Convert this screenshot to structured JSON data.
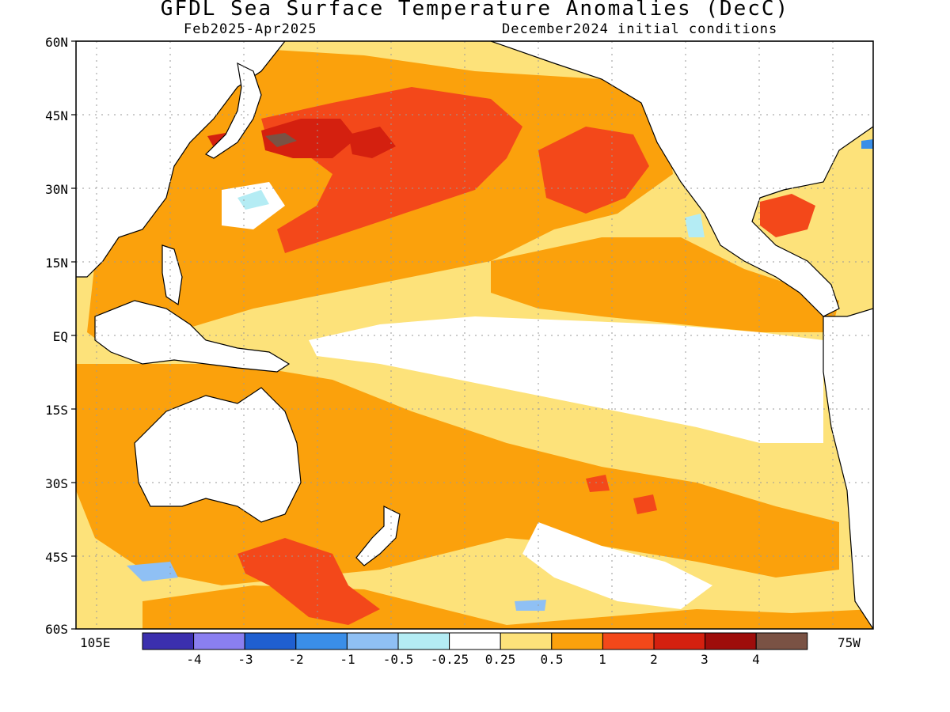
{
  "title": "GFDL Sea Surface Temperature Anomalies (DecC)",
  "subtitle_left": "Feb2025-Apr2025",
  "subtitle_right": "December2024 initial conditions",
  "lat_labels": [
    "60N",
    "45N",
    "30N",
    "15N",
    "EQ",
    "15S",
    "30S",
    "45S",
    "60S"
  ],
  "lon_labels": {
    "west": "105E",
    "east": "75W"
  },
  "colorbar": {
    "labels": [
      "-4",
      "-3",
      "-2",
      "-1",
      "-0.5",
      "-0.25",
      "0.25",
      "0.5",
      "1",
      "2",
      "3",
      "4"
    ],
    "colors": [
      "#3b2fae",
      "#8a7ff0",
      "#1f5fd0",
      "#3a8ee8",
      "#8fc0f4",
      "#b4ecf4",
      "#ffffff",
      "#fde27a",
      "#fba10c",
      "#f3481a",
      "#d4200f",
      "#9e0d0b",
      "#7a5244"
    ]
  },
  "legend_colors": {
    "white": "#ffffff",
    "light_yellow": "#fde27a",
    "orange": "#fba10c",
    "red_orange": "#f3481a",
    "red": "#d4200f",
    "dark_red": "#9e0d0b",
    "brown": "#7a5244",
    "light_cyan": "#b4ecf4",
    "light_blue": "#8fc0f4",
    "blue": "#3a8ee8"
  }
}
